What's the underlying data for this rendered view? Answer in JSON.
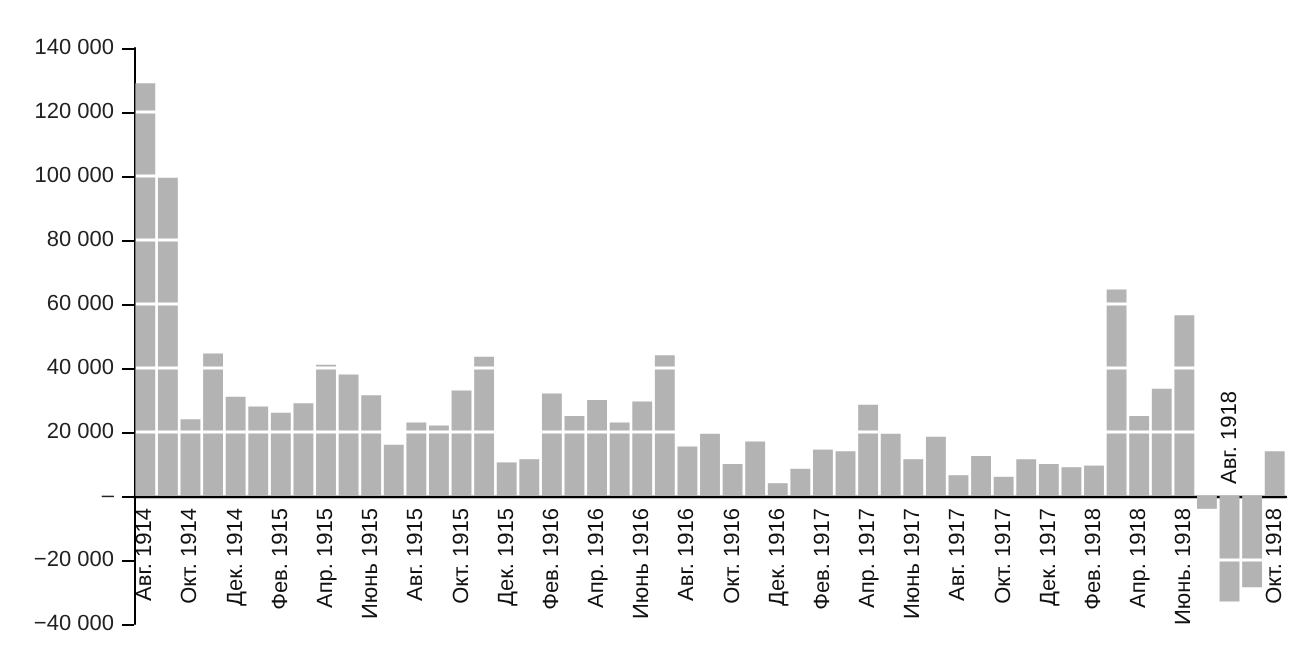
{
  "chart_data": {
    "type": "bar",
    "categories": [
      "Авг. 1914",
      null,
      "Окт. 1914",
      null,
      "Дек. 1914",
      null,
      "Фев. 1915",
      null,
      "Апр. 1915",
      null,
      "Июнь 1915",
      null,
      "Авг. 1915",
      null,
      "Окт. 1915",
      null,
      "Дек. 1915",
      null,
      "Фев. 1916",
      null,
      "Апр. 1916",
      null,
      "Июнь 1916",
      null,
      "Авг. 1916",
      null,
      "Окт. 1916",
      null,
      "Дек. 1916",
      null,
      "Фев. 1917",
      null,
      "Апр. 1917",
      null,
      "Июнь 1917",
      null,
      "Авг. 1917",
      null,
      "Окт. 1917",
      null,
      "Дек. 1917",
      null,
      "Фев. 1918",
      null,
      "Апр. 1918",
      null,
      "Июнь. 1918",
      null,
      "Авг. 1918",
      null,
      "Окт. 1918"
    ],
    "values": [
      129000,
      99500,
      24000,
      44500,
      31000,
      28000,
      26000,
      29000,
      41000,
      38000,
      31500,
      16000,
      23000,
      22000,
      33000,
      43500,
      10500,
      11500,
      32000,
      25000,
      30000,
      23000,
      29500,
      44000,
      15500,
      19500,
      10000,
      17000,
      4000,
      8500,
      14500,
      14000,
      28500,
      19500,
      11500,
      18500,
      6500,
      12500,
      6000,
      11500,
      10000,
      9000,
      9500,
      64500,
      25000,
      33500,
      56500,
      -4000,
      -33000,
      -28500,
      14000
    ],
    "color": "#b3b3b3",
    "ylim": [
      -40000,
      140000
    ],
    "yticks": [
      {
        "value": -40000,
        "label": "−40 000"
      },
      {
        "value": -20000,
        "label": "−20 000"
      },
      {
        "value": 0,
        "label": "–"
      },
      {
        "value": 20000,
        "label": "20 000"
      },
      {
        "value": 40000,
        "label": "40 000"
      },
      {
        "value": 60000,
        "label": "60 000"
      },
      {
        "value": 80000,
        "label": "80 000"
      },
      {
        "value": 100000,
        "label": "100 000"
      },
      {
        "value": 120000,
        "label": "120 000"
      },
      {
        "value": 140000,
        "label": "140 000"
      }
    ],
    "grid": "y"
  }
}
